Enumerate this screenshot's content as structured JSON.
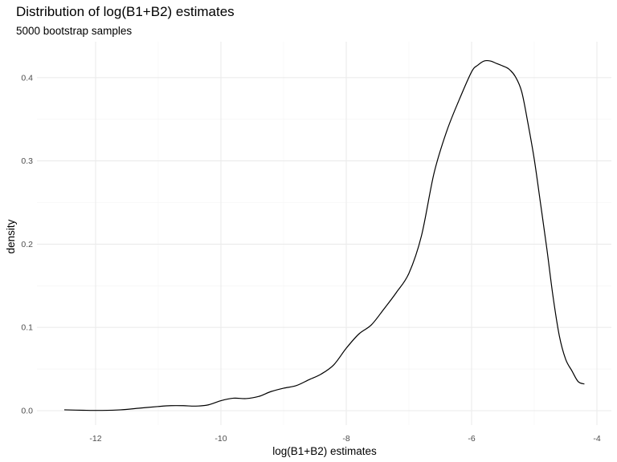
{
  "chart_data": {
    "type": "line",
    "title": "Distribution of log(B1+B2) estimates",
    "subtitle": "5000 bootstrap samples",
    "xlabel": "log(B1+B2) estimates",
    "ylabel": "density",
    "xlim": [
      -12.5,
      -4.2
    ],
    "ylim": [
      0,
      0.42
    ],
    "x_ticks": [
      -12,
      -10,
      -8,
      -6,
      -4
    ],
    "x_tick_labels": [
      "-12",
      "-10",
      "-8",
      "-6",
      "-4"
    ],
    "y_ticks": [
      0.0,
      0.1,
      0.2,
      0.3,
      0.4
    ],
    "y_tick_labels": [
      "0.0",
      "0.1",
      "0.2",
      "0.3",
      "0.4"
    ],
    "grid": true,
    "series": [
      {
        "name": "density",
        "x": [
          -12.5,
          -12.2,
          -11.9,
          -11.6,
          -11.3,
          -11.0,
          -10.8,
          -10.6,
          -10.4,
          -10.2,
          -10.0,
          -9.8,
          -9.6,
          -9.4,
          -9.2,
          -9.0,
          -8.8,
          -8.6,
          -8.4,
          -8.2,
          -8.0,
          -7.8,
          -7.6,
          -7.4,
          -7.2,
          -7.0,
          -6.8,
          -6.6,
          -6.4,
          -6.2,
          -6.0,
          -5.9,
          -5.8,
          -5.7,
          -5.6,
          -5.5,
          -5.4,
          -5.3,
          -5.2,
          -5.1,
          -5.0,
          -4.9,
          -4.8,
          -4.7,
          -4.6,
          -4.5,
          -4.4,
          -4.3,
          -4.2
        ],
        "y": [
          0.001,
          0.0005,
          0.0003,
          0.001,
          0.003,
          0.005,
          0.006,
          0.006,
          0.0055,
          0.007,
          0.012,
          0.015,
          0.0145,
          0.017,
          0.023,
          0.027,
          0.03,
          0.037,
          0.044,
          0.055,
          0.075,
          0.092,
          0.103,
          0.122,
          0.142,
          0.165,
          0.21,
          0.285,
          0.335,
          0.373,
          0.407,
          0.415,
          0.42,
          0.42,
          0.417,
          0.414,
          0.41,
          0.401,
          0.383,
          0.345,
          0.302,
          0.249,
          0.195,
          0.137,
          0.09,
          0.062,
          0.048,
          0.035,
          0.032
        ]
      }
    ]
  }
}
